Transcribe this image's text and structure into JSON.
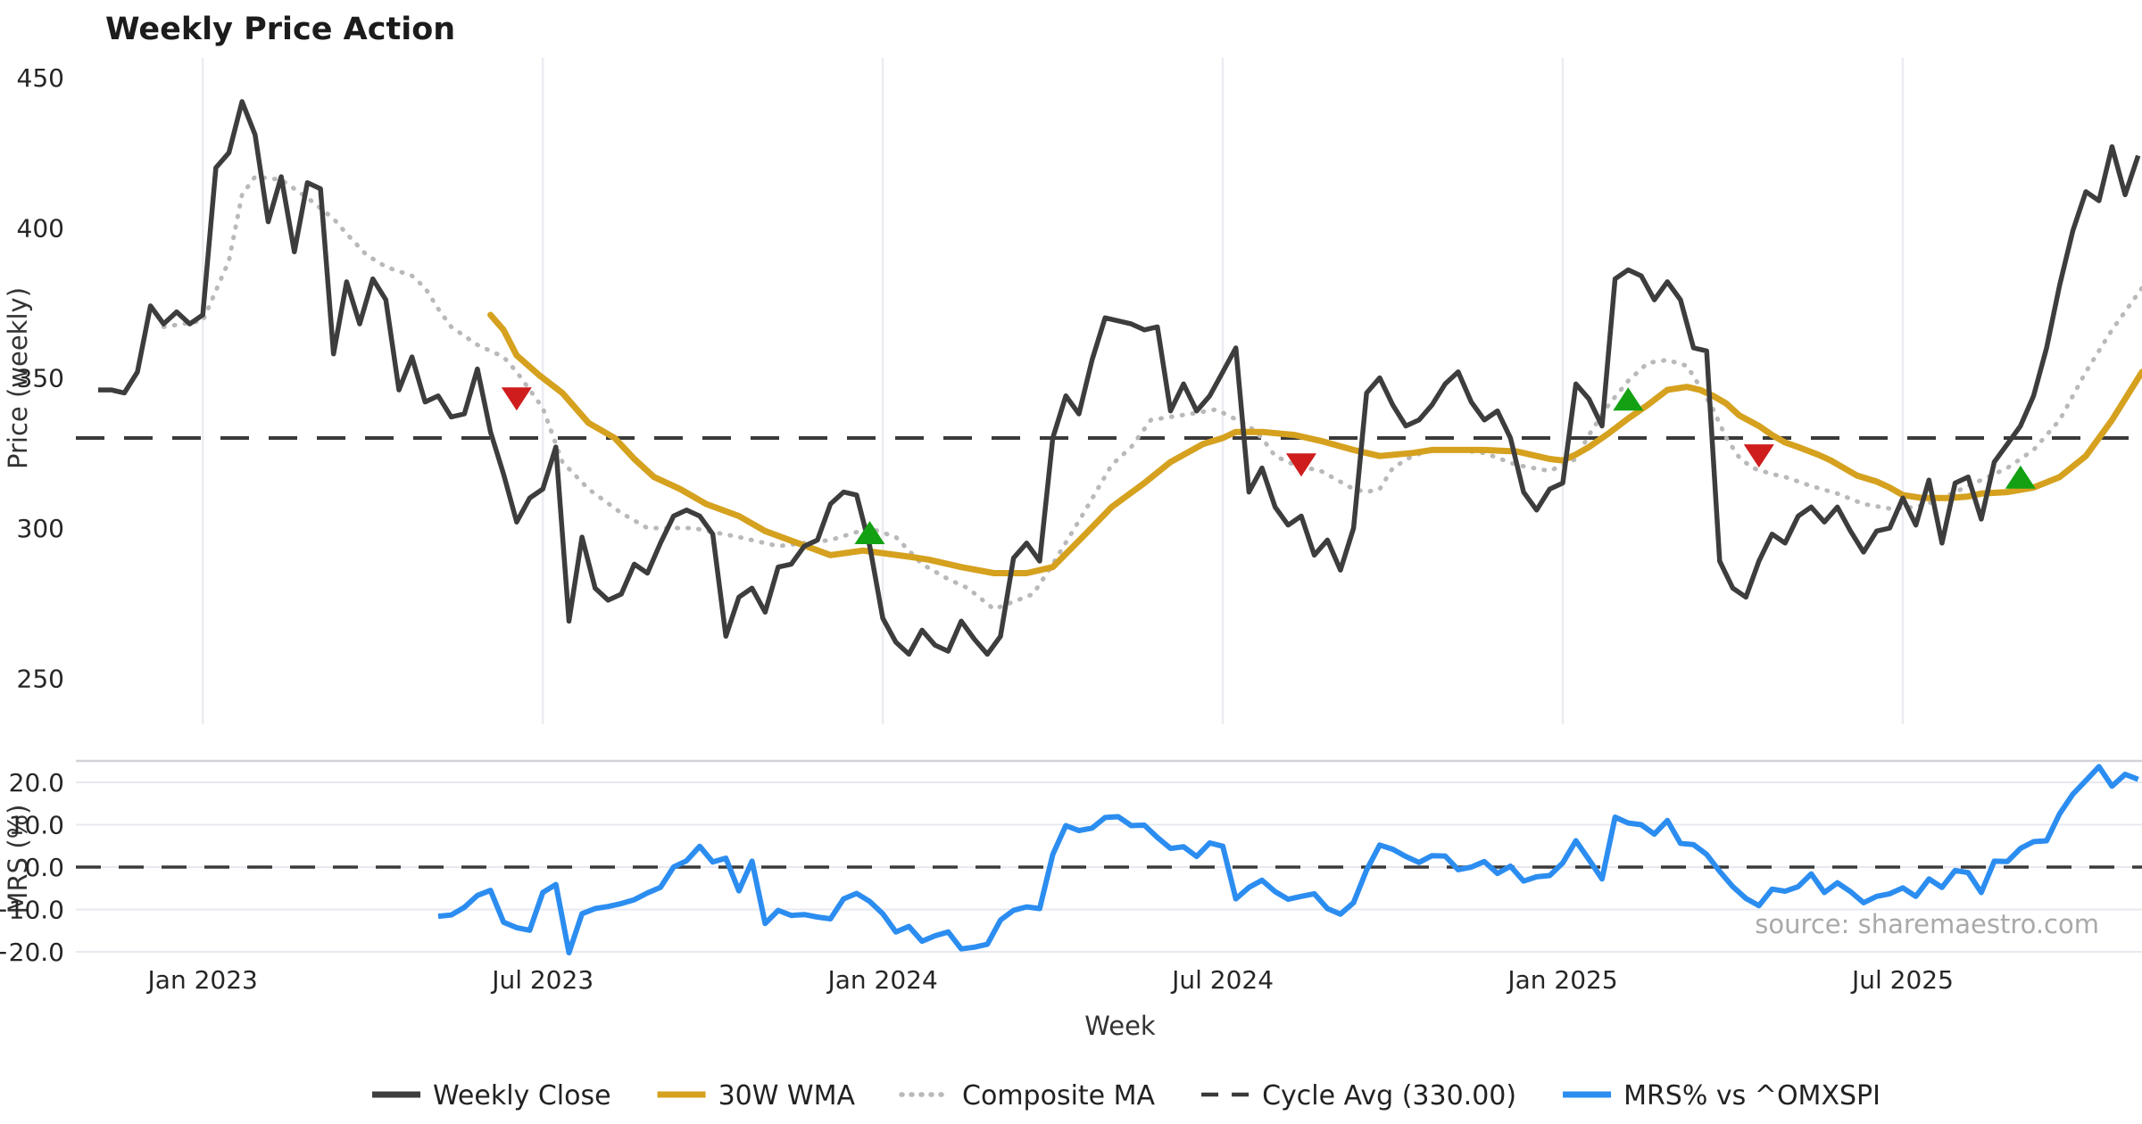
{
  "title": "Weekly Price Action",
  "source_note": "source: sharemaestro.com",
  "colors": {
    "close": "#3d3d3d",
    "wma": "#d5a11e",
    "composite": "#b9b9b9",
    "cycle_avg": "#3a3a3a",
    "mrs": "#2c8df0",
    "sell": "#cf1d1d",
    "buy": "#13a113",
    "grid_v": "#ececf2",
    "grid_h": "#e8e8f0",
    "panel_border": "#d2d2da",
    "bg": "#ffffff"
  },
  "legend": [
    {
      "label": "Weekly Close",
      "style": "solid",
      "color": "#3d3d3d"
    },
    {
      "label": "30W WMA",
      "style": "solid",
      "color": "#d5a11e"
    },
    {
      "label": "Composite MA",
      "style": "dotted",
      "color": "#b9b9b9"
    },
    {
      "label": "Cycle Avg (330.00)",
      "style": "dashed",
      "color": "#3a3a3a"
    },
    {
      "label": "MRS% vs ^OMXSPI",
      "style": "solid",
      "color": "#2c8df0"
    }
  ],
  "chart_data": {
    "type": "line",
    "xlabel": "Week",
    "x_week0_date": "2022-11-07",
    "week_count": 157,
    "xticks": [
      {
        "week": 8,
        "label": "Jan 2023"
      },
      {
        "week": 34,
        "label": "Jul 2023"
      },
      {
        "week": 60,
        "label": "Jan 2024"
      },
      {
        "week": 86,
        "label": "Jul 2024"
      },
      {
        "week": 112,
        "label": "Jan 2025"
      },
      {
        "week": 138,
        "label": "Jul 2025"
      }
    ],
    "price_panel": {
      "ylabel": "Price (weekly)",
      "yticks": [
        "450",
        "400",
        "350",
        "300",
        "250"
      ],
      "ytick_values": [
        450,
        400,
        350,
        300,
        250
      ],
      "ylim": [
        243,
        463
      ],
      "cycle_avg": 330.0,
      "weekly_close": [
        346,
        346,
        345,
        352,
        374,
        368,
        372,
        368,
        371,
        420,
        425,
        442,
        431,
        402,
        417,
        392,
        415,
        413,
        358,
        382,
        368,
        383,
        376,
        346,
        357,
        342,
        344,
        337,
        338,
        353,
        332,
        318,
        302,
        310,
        313,
        327,
        269,
        297,
        280,
        276,
        278,
        288,
        285,
        295,
        304,
        306,
        304,
        298,
        264,
        277,
        280,
        272,
        287,
        288,
        294,
        296,
        308,
        312,
        311,
        294,
        270,
        262,
        258,
        266,
        261,
        259,
        269,
        263,
        258,
        264,
        290,
        295,
        289,
        330,
        344,
        338,
        356,
        370,
        369,
        368,
        366,
        367,
        339,
        348,
        339,
        344,
        352,
        360,
        312,
        320,
        307,
        301,
        304,
        291,
        296,
        286,
        300,
        345,
        350,
        341,
        334,
        336,
        341,
        348,
        352,
        342,
        336,
        339,
        330,
        312,
        306,
        313,
        315,
        348,
        343,
        334,
        383,
        386,
        384,
        376,
        382,
        376,
        360,
        359,
        289,
        280,
        277,
        289,
        298,
        295,
        304,
        307,
        302,
        307,
        299,
        292,
        299,
        300,
        310,
        301,
        316,
        295,
        315,
        317,
        303,
        322,
        328,
        334,
        344,
        360,
        381,
        399,
        412,
        409,
        427,
        411,
        424
      ],
      "wma_30w_keypoints": [
        [
          30,
          371
        ],
        [
          31,
          366
        ],
        [
          32,
          357.5
        ],
        [
          33.7,
          351
        ],
        [
          35.5,
          345
        ],
        [
          37.5,
          335
        ],
        [
          39.5,
          330
        ],
        [
          41,
          323
        ],
        [
          42.5,
          317
        ],
        [
          44.5,
          313
        ],
        [
          46.5,
          308
        ],
        [
          49,
          304
        ],
        [
          51,
          299
        ],
        [
          53.5,
          295
        ],
        [
          56,
          291
        ],
        [
          58.5,
          292.5
        ],
        [
          62,
          290.5
        ],
        [
          63.5,
          289.5
        ],
        [
          66,
          287
        ],
        [
          68.5,
          285
        ],
        [
          71,
          285
        ],
        [
          73,
          287
        ],
        [
          75.5,
          298
        ],
        [
          77.5,
          307
        ],
        [
          80,
          315
        ],
        [
          82,
          322
        ],
        [
          84.5,
          328
        ],
        [
          86,
          330
        ],
        [
          87,
          332
        ],
        [
          89,
          332
        ],
        [
          91.5,
          331
        ],
        [
          93.5,
          329
        ],
        [
          96,
          326
        ],
        [
          98,
          324
        ],
        [
          100.5,
          325
        ],
        [
          102,
          326
        ],
        [
          104,
          326
        ],
        [
          106,
          326
        ],
        [
          108.5,
          325.5
        ],
        [
          111,
          323
        ],
        [
          112,
          322.5
        ],
        [
          113,
          324.5
        ],
        [
          114,
          327
        ],
        [
          115.5,
          331.5
        ],
        [
          117,
          336.5
        ],
        [
          118.5,
          341
        ],
        [
          120,
          346
        ],
        [
          121.5,
          347
        ],
        [
          122.5,
          346
        ],
        [
          123.5,
          344
        ],
        [
          124.5,
          341.5
        ],
        [
          125.5,
          337.5
        ],
        [
          127,
          334
        ],
        [
          128,
          331
        ],
        [
          129,
          328.5
        ],
        [
          130,
          327
        ],
        [
          131.5,
          324.5
        ],
        [
          132.5,
          322.5
        ],
        [
          133.5,
          320
        ],
        [
          134.5,
          317.5
        ],
        [
          136,
          315.5
        ],
        [
          137,
          313.5
        ],
        [
          138,
          311
        ],
        [
          139.5,
          310
        ],
        [
          141.5,
          310
        ],
        [
          143,
          310.5
        ],
        [
          144,
          311.5
        ],
        [
          146,
          312
        ],
        [
          148,
          313.5
        ],
        [
          150,
          317
        ],
        [
          152,
          324
        ],
        [
          154,
          336
        ],
        [
          156.3,
          352
        ]
      ],
      "composite_ma_keypoints": [
        [
          5,
          367
        ],
        [
          8,
          369
        ],
        [
          10,
          389
        ],
        [
          11,
          411
        ],
        [
          12,
          417
        ],
        [
          14,
          416
        ],
        [
          16,
          410
        ],
        [
          18,
          403
        ],
        [
          19,
          398
        ],
        [
          20.5,
          391
        ],
        [
          22,
          387
        ],
        [
          24,
          384
        ],
        [
          25,
          380
        ],
        [
          26,
          373
        ],
        [
          27,
          367
        ],
        [
          29,
          361
        ],
        [
          31,
          357
        ],
        [
          32,
          352
        ],
        [
          34,
          340
        ],
        [
          35.5,
          322
        ],
        [
          37.5,
          313
        ],
        [
          40,
          305
        ],
        [
          42,
          300
        ],
        [
          45.5,
          300
        ],
        [
          49,
          297
        ],
        [
          52,
          294
        ],
        [
          56,
          296
        ],
        [
          59,
          300
        ],
        [
          61,
          297
        ],
        [
          63,
          288
        ],
        [
          65,
          283
        ],
        [
          66.5,
          280
        ],
        [
          68.5,
          273
        ],
        [
          71.5,
          278
        ],
        [
          73,
          288
        ],
        [
          75.5,
          306
        ],
        [
          77.5,
          321
        ],
        [
          79,
          327
        ],
        [
          80.5,
          336
        ],
        [
          83.5,
          338
        ],
        [
          85.5,
          339.5
        ],
        [
          88,
          334
        ],
        [
          89,
          330
        ],
        [
          90,
          324
        ],
        [
          91.5,
          321
        ],
        [
          93.5,
          319
        ],
        [
          96,
          313
        ],
        [
          97,
          312
        ],
        [
          98,
          313
        ],
        [
          99,
          320
        ],
        [
          100.5,
          324
        ],
        [
          102,
          326
        ],
        [
          104,
          326
        ],
        [
          106,
          325
        ],
        [
          108.5,
          321
        ],
        [
          111,
          319
        ],
        [
          113,
          323
        ],
        [
          114,
          331
        ],
        [
          115.5,
          341
        ],
        [
          117,
          349
        ],
        [
          118.5,
          355
        ],
        [
          120,
          356
        ],
        [
          121.5,
          354
        ],
        [
          122.5,
          347
        ],
        [
          123.5,
          339.5
        ],
        [
          124.5,
          330
        ],
        [
          125.5,
          323.5
        ],
        [
          126.5,
          320
        ],
        [
          128,
          318
        ],
        [
          129,
          317
        ],
        [
          131,
          314
        ],
        [
          133,
          311.5
        ],
        [
          135,
          308
        ],
        [
          137,
          306.5
        ],
        [
          139,
          307
        ],
        [
          140.5,
          309
        ],
        [
          142,
          312
        ],
        [
          144,
          316
        ],
        [
          146,
          320
        ],
        [
          148,
          326
        ],
        [
          150,
          336
        ],
        [
          152,
          352
        ],
        [
          154,
          366
        ],
        [
          156.3,
          380
        ]
      ],
      "signals": {
        "sell": [
          [
            32,
            343
          ],
          [
            92,
            321
          ],
          [
            127,
            324
          ]
        ],
        "buy": [
          [
            59,
            298.5
          ],
          [
            117,
            343
          ],
          [
            147,
            317
          ]
        ]
      }
    },
    "mrs_panel": {
      "ylabel": "MRS (%)",
      "yticks": [
        "20.0",
        "10.0",
        "0.0",
        "−10.0",
        "−20.0"
      ],
      "ytick_values": [
        20,
        10,
        0,
        -10,
        -20
      ],
      "ylim": [
        -22.4,
        25.1
      ],
      "zero_line": 0.0,
      "start_week": 26,
      "values": [
        -11.6,
        -11.3,
        -9.5,
        -6.7,
        -5.5,
        -13.0,
        -14.3,
        -14.9,
        -6.0,
        -4.1,
        -20.2,
        -11.0,
        -9.8,
        -9.3,
        -8.6,
        -7.7,
        -6.1,
        -4.8,
        0.0,
        1.5,
        4.9,
        1.2,
        2.1,
        -5.6,
        1.4,
        -13.3,
        -10.2,
        -11.4,
        -11.2,
        -11.8,
        -12.2,
        -7.5,
        -6.2,
        -8.1,
        -11.0,
        -15.3,
        -14.0,
        -17.5,
        -16.2,
        -15.3,
        -19.3,
        -18.9,
        -18.2,
        -12.5,
        -10.2,
        -9.4,
        -9.8,
        3.0,
        9.8,
        8.6,
        9.2,
        11.7,
        11.9,
        9.8,
        9.9,
        7.0,
        4.4,
        4.8,
        2.5,
        5.7,
        4.9,
        -7.5,
        -4.8,
        -3.1,
        -5.8,
        -7.6,
        -6.9,
        -6.3,
        -9.8,
        -11.1,
        -8.4,
        -0.7,
        5.2,
        4.2,
        2.5,
        1.1,
        2.7,
        2.6,
        -0.6,
        0.0,
        1.3,
        -1.5,
        0.2,
        -3.3,
        -2.3,
        -2.0,
        1.0,
        6.2,
        1.8,
        -2.8,
        11.8,
        10.4,
        10.0,
        7.8,
        11.0,
        5.6,
        5.3,
        3.0,
        -1.0,
        -4.6,
        -7.4,
        -9.1,
        -5.2,
        -5.7,
        -4.6,
        -1.6,
        -6.0,
        -3.7,
        -5.8,
        -8.4,
        -6.9,
        -6.3,
        -4.9,
        -6.9,
        -2.8,
        -4.8,
        -0.8,
        -1.3,
        -6.0,
        1.4,
        1.3,
        4.4,
        6.0,
        6.2,
        12.6,
        17.2,
        20.4,
        23.7,
        19.1,
        21.9,
        20.7
      ]
    }
  }
}
